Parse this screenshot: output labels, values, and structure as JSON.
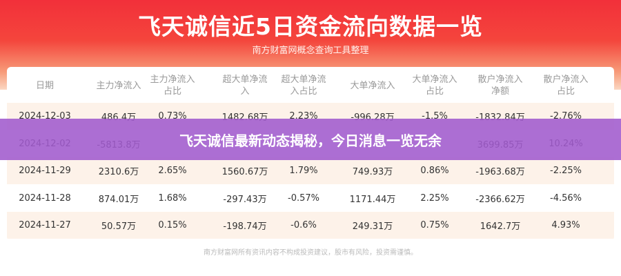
{
  "header": {
    "title": "飞天诚信近5日资金流向数据一览",
    "subtitle": "南方财富网概念查询工具整理"
  },
  "table": {
    "columns": [
      "日期",
      "主力净流入",
      "主力净流入占比",
      "超大单净流入",
      "超大单净流入占比",
      "大单净流入",
      "大单净流入占比",
      "散户净流入净额",
      "散户净流入占比"
    ],
    "rows": [
      [
        "2024-12-03",
        "486.4万",
        "0.73%",
        "1482.68万",
        "2.23%",
        "-996.28万",
        "-1.5%",
        "-1832.84万",
        "-2.76%"
      ],
      [
        "2024-12-02",
        "-5813.8万",
        "",
        "",
        "",
        "",
        "",
        "3699.85万",
        "10.24%"
      ],
      [
        "2024-11-29",
        "2310.6万",
        "2.65%",
        "1560.67万",
        "1.79%",
        "749.93万",
        "0.86%",
        "-1963.68万",
        "-2.25%"
      ],
      [
        "2024-11-28",
        "874.01万",
        "1.68%",
        "-297.43万",
        "-0.57%",
        "1171.44万",
        "2.25%",
        "-2366.62万",
        "-4.56%"
      ],
      [
        "2024-11-27",
        "50.57万",
        "0.15%",
        "-198.74万",
        "-0.6%",
        "249.31万",
        "0.75%",
        "1642.7万",
        "4.93%"
      ]
    ]
  },
  "banner": {
    "text": "飞天诚信最新动态揭秘，今日消息一览无余"
  },
  "footer": {
    "disclaimer": "南方财富网所有资讯内容不构成投资建议，股市有风险，投资需谨慎。"
  },
  "colors": {
    "header_red": "#f2303a",
    "banner_purple": "#a05acd",
    "row_alt": "#fdf2e9"
  }
}
